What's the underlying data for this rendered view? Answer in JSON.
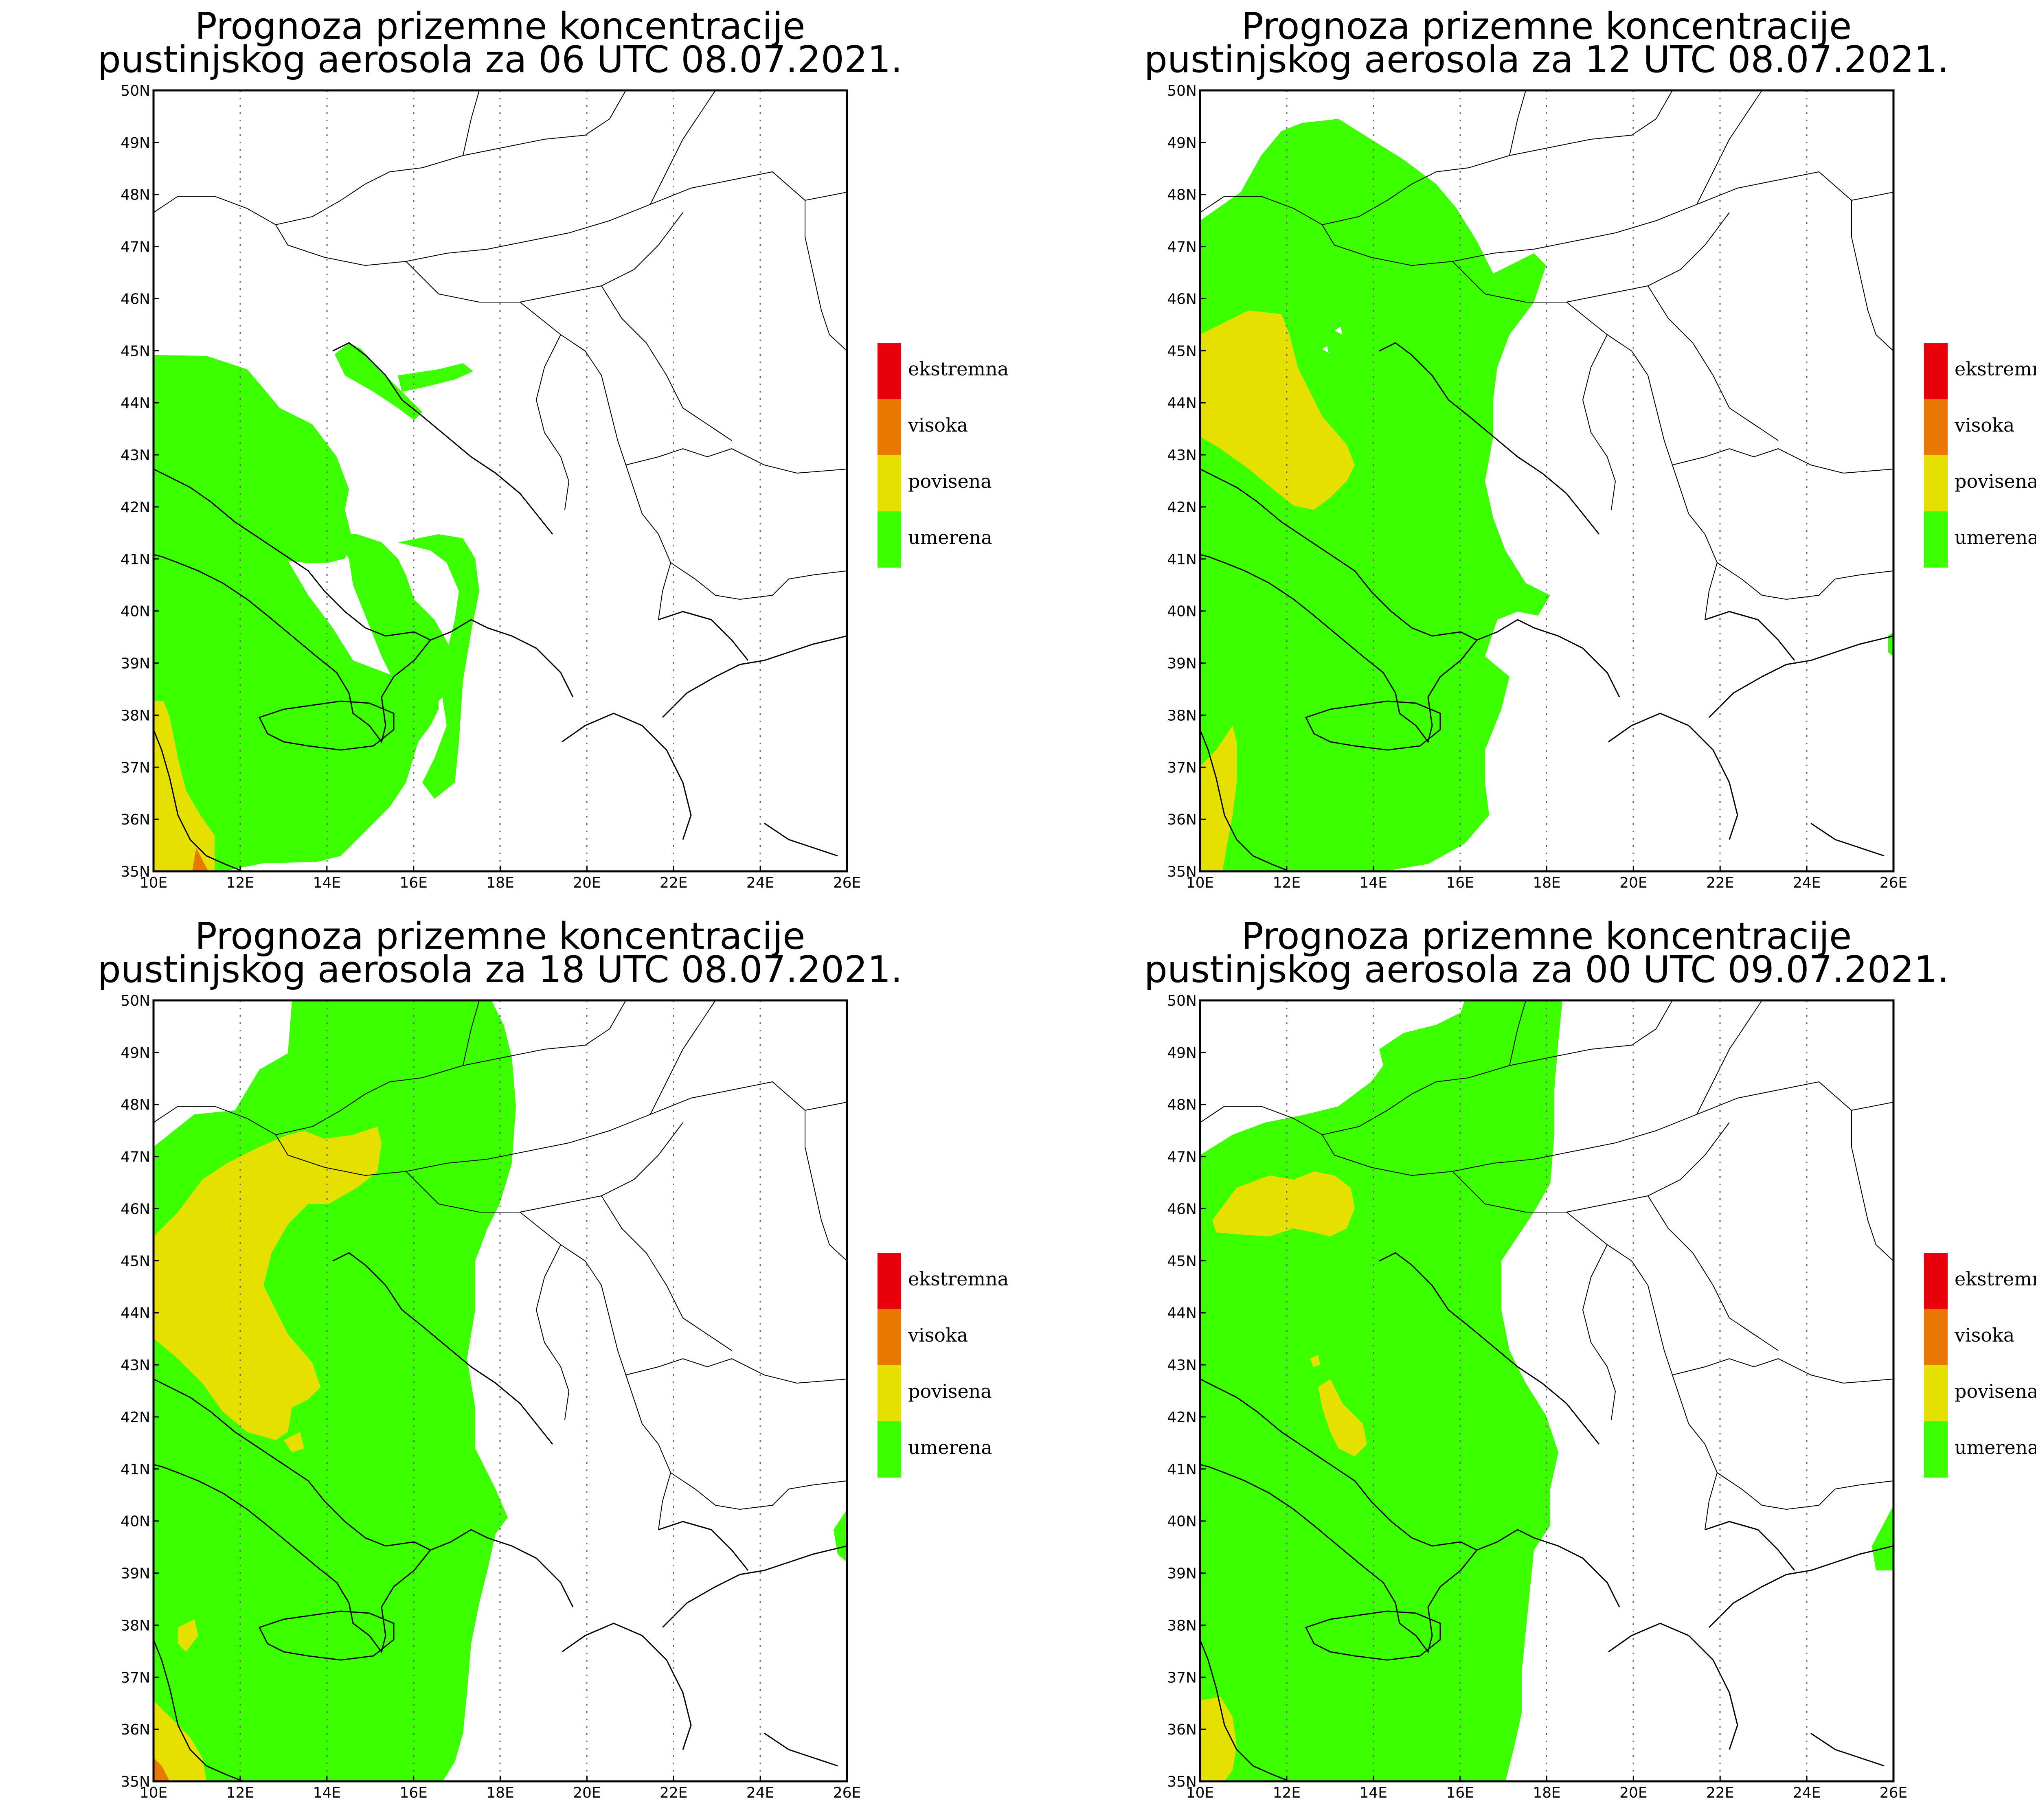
{
  "map_title_line1": "Prognoza prizemne koncentracije",
  "panels": [
    {
      "id": "p06",
      "title_line2": "pustinjskog aerosola za 06 UTC 08.07.2021."
    },
    {
      "id": "p12",
      "title_line2": "pustinjskog aerosola za 12 UTC 08.07.2021."
    },
    {
      "id": "p18",
      "title_line2": "pustinjskog aerosola za 18 UTC 08.07.2021."
    },
    {
      "id": "p00",
      "title_line2": "pustinjskog aerosola za 00 UTC 09.07.2021."
    }
  ],
  "x_ticks": [
    "10E",
    "12E",
    "14E",
    "16E",
    "18E",
    "20E",
    "22E",
    "24E",
    "26E"
  ],
  "y_ticks": [
    "35N",
    "36N",
    "37N",
    "38N",
    "39N",
    "40N",
    "41N",
    "42N",
    "43N",
    "44N",
    "45N",
    "46N",
    "47N",
    "48N",
    "49N",
    "50N"
  ],
  "lon_range": [
    10,
    26
  ],
  "lat_range": [
    35,
    50
  ],
  "legend": [
    {
      "label": "ekstremna",
      "color": "#e8000b"
    },
    {
      "label": "visoka",
      "color": "#e87800"
    },
    {
      "label": "povisena",
      "color": "#e5e000"
    },
    {
      "label": "umerena",
      "color": "#3cff00"
    }
  ],
  "colors": {
    "umerena": "#3cff00",
    "povisena": "#e5e000",
    "visoka": "#e87800"
  }
}
